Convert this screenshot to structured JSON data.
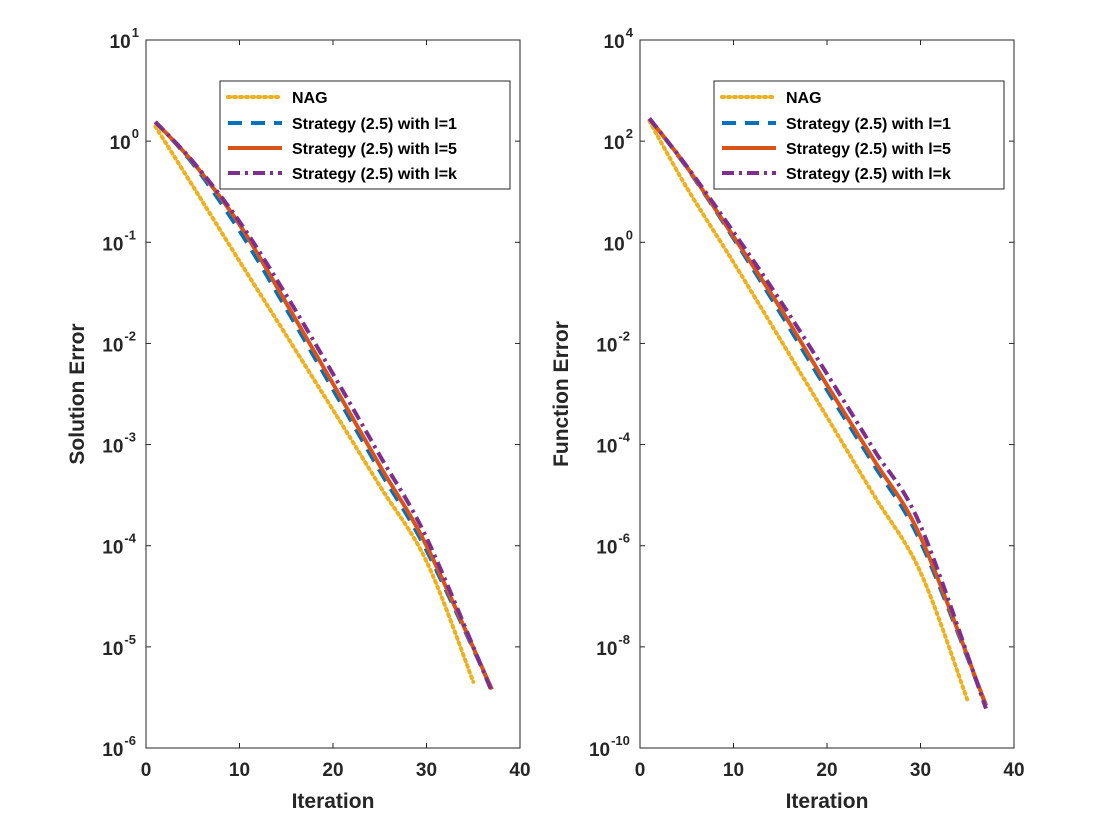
{
  "chart_data": [
    {
      "type": "line",
      "xlabel": "Iteration",
      "ylabel": "Solution Error",
      "xlim": [
        0,
        40
      ],
      "ylim": [
        1e-06,
        10
      ],
      "yscale": "log",
      "xticks": [
        0,
        10,
        20,
        30,
        40
      ],
      "yticks": [
        {
          "value": 1e-06,
          "base": "10",
          "exp": "-6"
        },
        {
          "value": 1e-05,
          "base": "10",
          "exp": "-5"
        },
        {
          "value": 0.0001,
          "base": "10",
          "exp": "-4"
        },
        {
          "value": 0.001,
          "base": "10",
          "exp": "-3"
        },
        {
          "value": 0.01,
          "base": "10",
          "exp": "-2"
        },
        {
          "value": 0.1,
          "base": "10",
          "exp": "-1"
        },
        {
          "value": 1,
          "base": "10",
          "exp": "0"
        },
        {
          "value": 10,
          "base": "10",
          "exp": "1"
        }
      ],
      "legend_position": "top-right",
      "series": [
        {
          "name": "NAG",
          "color": "#EDB120",
          "style": "dotted",
          "x": [
            1,
            5,
            10,
            15,
            20,
            25,
            30,
            35
          ],
          "y": [
            1.4,
            0.36,
            0.065,
            0.012,
            0.0022,
            0.00039,
            7e-05,
            4.5e-06
          ]
        },
        {
          "name": "Strategy (2.5) with l=1",
          "color": "#0072BD",
          "style": "dashed",
          "x": [
            1,
            5,
            10,
            15,
            20,
            25,
            30,
            37
          ],
          "y": [
            1.55,
            0.6,
            0.13,
            0.022,
            0.0035,
            0.00055,
            9e-05,
            3.8e-06
          ]
        },
        {
          "name": "Strategy (2.5) with l=5",
          "color": "#D95319",
          "style": "solid",
          "x": [
            1,
            5,
            10,
            15,
            20,
            25,
            30,
            37
          ],
          "y": [
            1.55,
            0.62,
            0.15,
            0.025,
            0.004,
            0.00062,
            0.0001,
            3.8e-06
          ]
        },
        {
          "name": "Strategy (2.5) with l=k",
          "color": "#7E2F8E",
          "style": "dashdot",
          "x": [
            1,
            5,
            10,
            15,
            20,
            25,
            30,
            37
          ],
          "y": [
            1.55,
            0.63,
            0.16,
            0.03,
            0.005,
            0.00078,
            0.00012,
            3.6e-06
          ]
        }
      ]
    },
    {
      "type": "line",
      "xlabel": "Iteration",
      "ylabel": "Function Error",
      "xlim": [
        0,
        40
      ],
      "ylim": [
        1e-10,
        10000
      ],
      "yscale": "log",
      "xticks": [
        0,
        10,
        20,
        30,
        40
      ],
      "yticks": [
        {
          "value": 1e-10,
          "base": "10",
          "exp": "-10"
        },
        {
          "value": 1e-08,
          "base": "10",
          "exp": "-8"
        },
        {
          "value": 1e-06,
          "base": "10",
          "exp": "-6"
        },
        {
          "value": 0.0001,
          "base": "10",
          "exp": "-4"
        },
        {
          "value": 0.01,
          "base": "10",
          "exp": "-2"
        },
        {
          "value": 1,
          "base": "10",
          "exp": "0"
        },
        {
          "value": 100,
          "base": "10",
          "exp": "2"
        },
        {
          "value": 10000,
          "base": "10",
          "exp": "4"
        }
      ],
      "legend_position": "top-right",
      "series": [
        {
          "name": "NAG",
          "color": "#EDB120",
          "style": "dotted",
          "x": [
            1,
            5,
            10,
            15,
            20,
            25,
            30,
            35
          ],
          "y": [
            250,
            12,
            0.4,
            0.012,
            0.00035,
            1e-05,
            3e-07,
            9e-10
          ]
        },
        {
          "name": "Strategy (2.5) with l=1",
          "color": "#0072BD",
          "style": "dashed",
          "x": [
            1,
            5,
            10,
            15,
            20,
            25,
            30,
            37
          ],
          "y": [
            280,
            30,
            1.2,
            0.04,
            0.0012,
            4e-05,
            1.2e-06,
            7e-10
          ]
        },
        {
          "name": "Strategy (2.5) with l=5",
          "color": "#D95319",
          "style": "solid",
          "x": [
            1,
            5,
            10,
            15,
            20,
            25,
            30,
            37
          ],
          "y": [
            280,
            31,
            1.3,
            0.05,
            0.0015,
            5e-05,
            1.5e-06,
            7e-10
          ]
        },
        {
          "name": "Strategy (2.5) with l=k",
          "color": "#7E2F8E",
          "style": "dashdot",
          "x": [
            1,
            5,
            10,
            15,
            20,
            25,
            30,
            37
          ],
          "y": [
            280,
            32,
            1.6,
            0.07,
            0.0025,
            8e-05,
            2.5e-06,
            6e-10
          ]
        }
      ]
    }
  ]
}
